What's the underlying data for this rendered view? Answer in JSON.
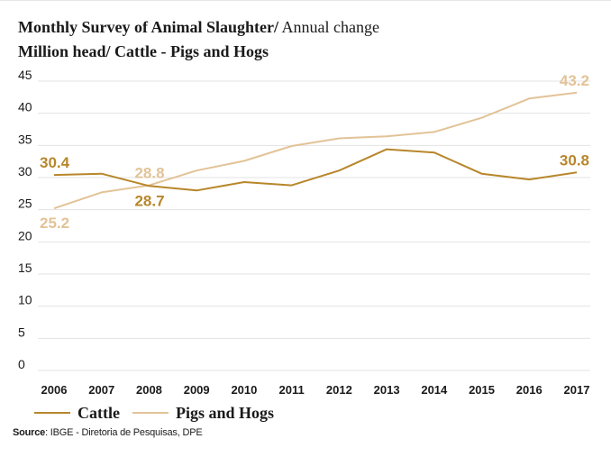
{
  "header": {
    "title_bold": "Monthly Survey of Animal Slaughter/",
    "title_rest": " Annual change",
    "subtitle": "Million head/ Cattle - Pigs and Hogs"
  },
  "source": {
    "label": "Source",
    "text": ": IBGE - Diretoria de Pesquisas, DPE"
  },
  "legend": {
    "items": [
      {
        "label": "Cattle",
        "color": "#b8862b"
      },
      {
        "label": "Pigs and Hogs",
        "color": "#e2c397"
      }
    ]
  },
  "chart_data": {
    "type": "line",
    "x": [
      "2006",
      "2007",
      "2008",
      "2009",
      "2010",
      "2011",
      "2012",
      "2013",
      "2014",
      "2015",
      "2016",
      "2017"
    ],
    "yticks": [
      0,
      5,
      10,
      15,
      20,
      25,
      30,
      35,
      40,
      45
    ],
    "ylim": [
      0,
      45
    ],
    "grid": true,
    "legend_position": "bottom-left",
    "series": [
      {
        "name": "Cattle",
        "color": "#b8862b",
        "values": [
          30.4,
          30.6,
          28.7,
          28.0,
          29.3,
          28.8,
          31.1,
          34.4,
          33.9,
          30.6,
          29.7,
          30.8
        ]
      },
      {
        "name": "Pigs and Hogs",
        "color": "#e2c397",
        "values": [
          25.2,
          27.7,
          28.8,
          31.1,
          32.6,
          34.9,
          36.1,
          36.4,
          37.1,
          39.3,
          42.3,
          43.2
        ]
      }
    ],
    "annotations": [
      {
        "series": 0,
        "index": 0,
        "text": "30.4",
        "pos": "above"
      },
      {
        "series": 0,
        "index": 2,
        "text": "28.7",
        "pos": "below"
      },
      {
        "series": 0,
        "index": 11,
        "text": "30.8",
        "pos": "above-left"
      },
      {
        "series": 1,
        "index": 0,
        "text": "25.2",
        "pos": "below"
      },
      {
        "series": 1,
        "index": 2,
        "text": "28.8",
        "pos": "above"
      },
      {
        "series": 1,
        "index": 11,
        "text": "43.2",
        "pos": "above-left"
      }
    ]
  }
}
